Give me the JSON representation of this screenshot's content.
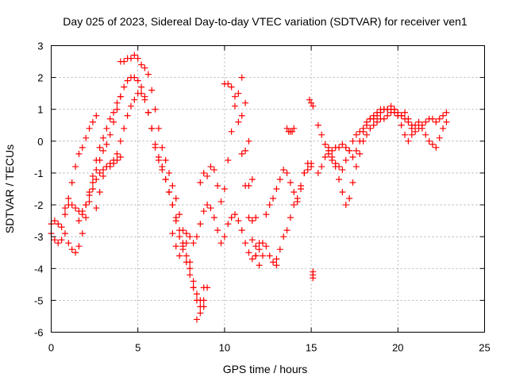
{
  "chart_data": {
    "type": "scatter",
    "title": "Day 025 of 2023, Sidereal Day-to-day VTEC variation (SDTVAR) for receiver ven1",
    "xlabel": "GPS time / hours",
    "ylabel": "SDTVAR / TECUs",
    "xlim": [
      0,
      25
    ],
    "ylim": [
      -6,
      3
    ],
    "xticks": [
      0,
      5,
      10,
      15,
      20,
      25
    ],
    "yticks": [
      -6,
      -5,
      -4,
      -3,
      -2,
      -1,
      0,
      1,
      2,
      3
    ],
    "grid": true,
    "marker": "+",
    "color": "#ff0000",
    "series": [
      {
        "x": [
          0.0,
          0.2,
          0.4,
          0.6,
          0.8,
          1.0,
          1.2,
          1.4,
          1.6,
          1.8,
          2.0,
          2.2,
          2.4,
          2.6,
          2.8,
          3.0,
          3.2,
          3.4,
          3.6,
          3.8,
          4.0,
          4.2,
          4.4,
          4.6,
          4.8,
          5.0,
          5.2,
          5.4,
          5.6,
          5.8,
          6.0,
          6.2,
          6.4,
          6.6,
          6.8,
          7.0,
          7.2,
          7.4,
          7.6,
          7.8,
          8.0,
          8.2,
          8.4,
          8.6,
          8.8,
          9.0
        ],
        "y": [
          -2.9,
          -3.1,
          -3.2,
          -3.1,
          -2.9,
          -3.2,
          -3.4,
          -3.5,
          -3.3,
          -2.9,
          -2.4,
          -1.9,
          -1.5,
          -1.2,
          -1.0,
          -0.9,
          -0.8,
          -0.7,
          -0.6,
          -0.4,
          0.0,
          0.4,
          0.8,
          1.1,
          1.3,
          1.5,
          1.5,
          1.3,
          0.9,
          0.4,
          -0.2,
          -0.6,
          -0.9,
          -1.2,
          -1.6,
          -2.0,
          -2.4,
          -2.8,
          -3.2,
          -3.6,
          -4.0,
          -4.4,
          -4.8,
          -5.2,
          -5.0,
          -4.6
        ]
      },
      {
        "x": [
          0.0,
          0.2,
          0.4,
          0.6,
          0.8,
          1.0,
          1.2,
          1.4,
          1.6,
          1.8,
          2.0,
          2.2,
          2.4,
          2.6
        ],
        "y": [
          -2.6,
          -2.5,
          -2.6,
          -2.7,
          -2.3,
          -1.8,
          -1.3,
          -0.8,
          -0.4,
          -0.2,
          0.1,
          0.4,
          0.6,
          0.8
        ]
      },
      {
        "x": [
          0.8,
          1.0,
          1.2,
          1.4,
          1.6,
          1.8,
          2.0,
          2.2,
          2.4,
          2.6,
          2.8,
          3.0,
          3.2,
          3.4,
          3.6,
          3.8,
          4.0
        ],
        "y": [
          -2.1,
          -2.0,
          -2.0,
          -2.1,
          -2.2,
          -2.2,
          -2.0,
          -1.6,
          -1.1,
          -0.6,
          -0.2,
          0.1,
          0.4,
          0.7,
          0.9,
          1.2,
          1.4
        ]
      },
      {
        "x": [
          1.6,
          1.8,
          2.0,
          2.2,
          2.4,
          2.6,
          2.8,
          3.0,
          3.2,
          3.4,
          3.6,
          3.8,
          4.0,
          4.2,
          4.4,
          4.6,
          4.8,
          5.0,
          5.2,
          5.4,
          5.6,
          5.8,
          6.0,
          6.2,
          6.4,
          6.6,
          6.8,
          7.0,
          7.2,
          7.4,
          7.6,
          7.8,
          8.0,
          8.2,
          8.4,
          8.6,
          8.8
        ],
        "y": [
          -2.5,
          -2.3,
          -2.0,
          -1.7,
          -1.3,
          -0.9,
          -0.6,
          -0.3,
          -0.1,
          0.2,
          0.6,
          1.0,
          1.4,
          1.7,
          1.9,
          2.0,
          2.0,
          1.9,
          1.7,
          1.4,
          0.9,
          0.4,
          -0.1,
          -0.5,
          -0.8,
          -1.2,
          -1.6,
          -2.0,
          -2.5,
          -3.0,
          -3.4,
          -3.8,
          -4.2,
          -4.6,
          -5.0,
          -5.4,
          -5.2
        ]
      },
      {
        "x": [
          2.6,
          2.8,
          3.0,
          3.2,
          3.4,
          3.6,
          3.8,
          4.0
        ],
        "y": [
          -2.1,
          -1.6,
          -1.1,
          -0.8,
          -0.8,
          -0.7,
          -0.6,
          -0.5
        ]
      },
      {
        "x": [
          4.0,
          4.2,
          4.4,
          4.6,
          4.8,
          5.0,
          5.2,
          5.4,
          5.6,
          5.8,
          6.0,
          6.2,
          6.4,
          6.6,
          6.8,
          7.0,
          7.2,
          7.4,
          7.6,
          7.8,
          8.0,
          8.2,
          8.4,
          8.6,
          8.8
        ],
        "y": [
          2.5,
          2.5,
          2.6,
          2.6,
          2.7,
          2.6,
          2.4,
          2.3,
          2.1,
          1.6,
          1.0,
          0.4,
          -0.2,
          -0.6,
          -1.0,
          -1.4,
          -1.8,
          -2.3,
          -2.8,
          -3.2,
          -3.8,
          -4.6,
          -5.6,
          -5.0,
          -4.6
        ]
      },
      {
        "x": [
          7.0,
          7.2,
          7.4,
          7.6,
          7.8,
          8.0,
          8.2,
          8.4,
          8.6,
          8.8,
          9.0,
          9.2,
          9.4,
          9.6,
          9.8,
          10.0,
          10.2,
          10.4,
          10.6,
          10.8,
          11.0,
          11.2,
          11.4,
          11.6,
          11.8,
          12.0,
          12.2,
          12.4,
          12.6,
          12.8,
          13.0
        ],
        "y": [
          -2.9,
          -3.3,
          -3.6,
          -3.3,
          -2.9,
          -3.0,
          -3.2,
          -3.0,
          -2.6,
          -2.2,
          -2.0,
          -2.1,
          -2.4,
          -2.8,
          -3.2,
          -3.0,
          -2.6,
          -2.4,
          -2.3,
          -2.5,
          -2.8,
          -3.2,
          -3.5,
          -3.7,
          -3.6,
          -3.4,
          -3.2,
          -3.3,
          -3.6,
          -3.8,
          -3.9
        ]
      },
      {
        "x": [
          8.6,
          8.8,
          9.0,
          9.2,
          9.4,
          9.6,
          9.8,
          10.0,
          10.2,
          10.4,
          10.6,
          10.8,
          11.0,
          11.2,
          11.4,
          11.6,
          11.8,
          12.0
        ],
        "y": [
          -1.3,
          -1.0,
          -1.1,
          -0.8,
          -0.9,
          -1.4,
          -1.9,
          -1.5,
          -0.6,
          0.3,
          1.1,
          1.5,
          0.8,
          -0.3,
          -1.4,
          -2.5,
          -3.3,
          -3.9
        ]
      },
      {
        "x": [
          10.0,
          10.2,
          10.4,
          10.6,
          10.8,
          11.0,
          11.2,
          11.4,
          11.6,
          11.8
        ],
        "y": [
          1.8,
          1.8,
          1.7,
          1.4,
          0.6,
          -0.4,
          -1.4,
          -2.4,
          -3.1,
          -3.6
        ]
      },
      {
        "x": [
          11.0,
          11.2,
          11.4,
          11.6,
          11.8,
          12.0,
          12.2
        ],
        "y": [
          2.0,
          1.2,
          0.0,
          -1.2,
          -2.4,
          -3.2,
          -3.6
        ]
      },
      {
        "x": [
          12.4,
          12.6,
          12.8,
          13.0,
          13.2,
          13.4,
          13.6,
          13.8,
          14.0,
          14.2,
          14.4,
          14.6,
          14.8,
          15.0
        ],
        "y": [
          -2.3,
          -2.0,
          -1.8,
          -1.5,
          -1.2,
          -0.9,
          -1.0,
          -1.3,
          -1.6,
          -1.9,
          -1.4,
          -1.0,
          -0.7,
          -0.8
        ]
      },
      {
        "x": [
          13.0,
          13.2,
          13.4,
          13.6,
          13.8,
          14.0,
          14.2,
          14.4,
          14.6,
          14.8,
          15.0
        ],
        "y": [
          -3.7,
          -3.4,
          -3.0,
          -2.8,
          -2.4,
          -2.0,
          -1.8,
          -1.5,
          -1.0,
          -0.9,
          -0.7
        ]
      },
      {
        "x": [
          13.6,
          13.7,
          13.8,
          13.9,
          14.0
        ],
        "y": [
          0.4,
          0.3,
          0.3,
          0.3,
          0.4
        ]
      },
      {
        "x": [
          14.9,
          15.0,
          15.1
        ],
        "y": [
          1.3,
          1.2,
          1.1
        ]
      },
      {
        "x": [
          15.1,
          15.1,
          15.1
        ],
        "y": [
          -4.1,
          -4.2,
          -4.3
        ]
      },
      {
        "x": [
          15.4,
          15.6,
          15.8,
          16.0,
          16.2,
          16.4,
          16.6,
          16.8,
          17.0,
          17.2,
          17.4,
          17.6,
          17.8,
          18.0,
          18.2,
          18.4,
          18.6,
          18.8,
          19.0,
          19.2,
          19.4,
          19.6,
          19.8,
          20.0,
          20.2,
          20.4,
          20.6,
          20.8
        ],
        "y": [
          0.5,
          0.2,
          -0.1,
          -0.4,
          -0.6,
          -0.7,
          -0.8,
          -0.9,
          -0.6,
          -0.3,
          0.0,
          0.2,
          0.3,
          0.4,
          0.6,
          0.7,
          0.8,
          0.9,
          1.0,
          1.0,
          1.0,
          1.1,
          1.0,
          0.9,
          0.8,
          0.7,
          0.6,
          0.5
        ]
      },
      {
        "x": [
          15.4,
          15.6,
          15.8,
          16.0,
          16.2,
          16.4,
          16.6,
          16.8,
          17.0,
          17.2,
          17.4,
          17.6,
          17.8,
          18.0,
          18.2,
          18.4,
          18.6,
          18.8,
          19.0,
          19.2,
          19.4,
          19.6,
          19.8,
          20.0,
          20.2,
          20.4,
          20.6,
          20.8,
          21.0,
          21.2,
          21.4,
          21.6,
          21.8,
          22.0,
          22.2,
          22.4,
          22.6,
          22.8
        ],
        "y": [
          -1.0,
          -0.8,
          -0.5,
          -0.3,
          -0.5,
          -0.8,
          -1.2,
          -1.6,
          -2.0,
          -1.8,
          -1.3,
          -0.8,
          -0.4,
          0.0,
          0.2,
          0.4,
          0.5,
          0.6,
          0.7,
          0.7,
          0.8,
          0.9,
          1.0,
          0.8,
          0.5,
          0.2,
          0.0,
          0.2,
          0.5,
          0.6,
          0.4,
          0.2,
          0.0,
          -0.1,
          -0.2,
          0.1,
          0.4,
          0.6
        ]
      },
      {
        "x": [
          16.0,
          16.2,
          16.4,
          16.6,
          16.8,
          17.0,
          17.2,
          17.4,
          17.6,
          17.8,
          18.0,
          18.2,
          18.4,
          18.6,
          18.8,
          19.0,
          19.2,
          19.4,
          19.6,
          19.8,
          20.0,
          20.2,
          20.4,
          20.6,
          20.8,
          21.0,
          21.2,
          21.4,
          21.6,
          21.8,
          22.0,
          22.2,
          22.4,
          22.6,
          22.8
        ],
        "y": [
          -0.2,
          -0.3,
          -0.2,
          -0.2,
          -0.1,
          -0.2,
          -0.3,
          -0.5,
          -0.3,
          0.0,
          0.3,
          0.5,
          0.7,
          0.7,
          0.8,
          0.9,
          1.0,
          1.0,
          1.0,
          0.9,
          0.8,
          0.8,
          0.9,
          0.7,
          0.4,
          0.3,
          0.4,
          0.5,
          0.6,
          0.7,
          0.7,
          0.6,
          0.7,
          0.8,
          0.9
        ]
      }
    ]
  }
}
